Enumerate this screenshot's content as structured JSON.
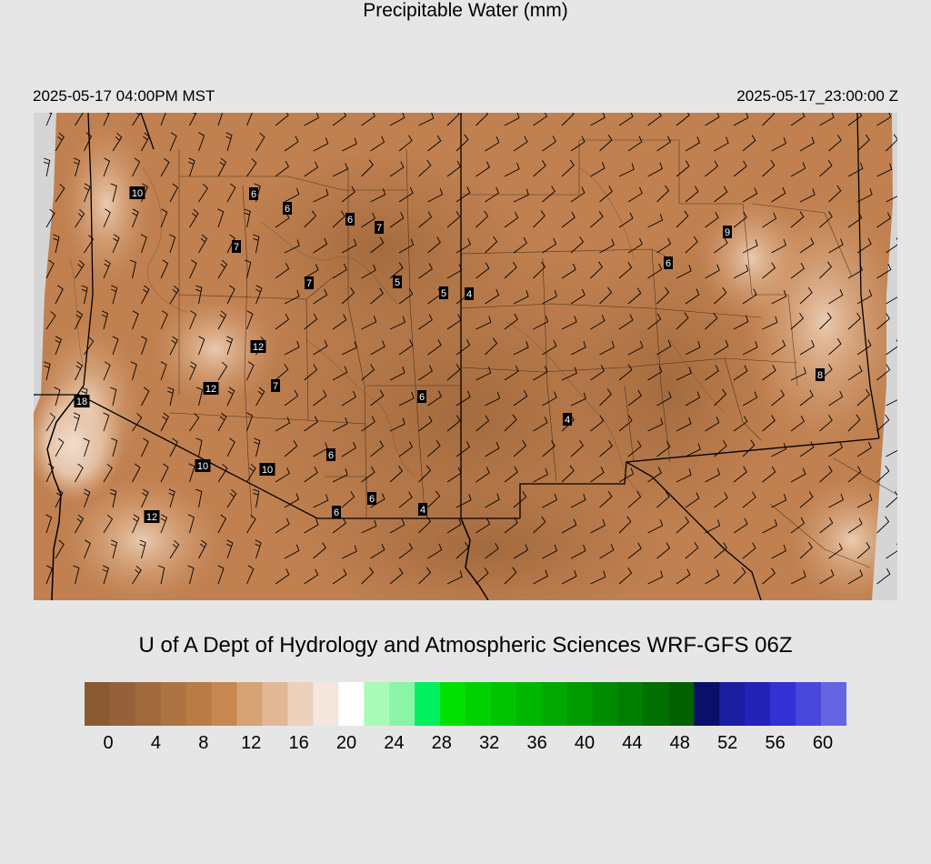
{
  "header": {
    "local_time": "2025-05-17 04:00PM MST",
    "title": "Precipitable Water (mm)",
    "valid_time": "2025-05-17_23:00:00 Z"
  },
  "footer": {
    "credit": "U of A Dept of Hydrology and Atmospheric Sciences WRF-GFS 06Z"
  },
  "colorbar": {
    "colors": [
      "#8a5a32",
      "#95613a",
      "#a16a3e",
      "#ad7342",
      "#b97c47",
      "#c7874f",
      "#d5a375",
      "#e0b896",
      "#ecd1bb",
      "#f4e6dd",
      "#ffffff",
      "#aafab7",
      "#8af5a7",
      "#00f060",
      "#00e000",
      "#00d200",
      "#00c400",
      "#00b600",
      "#00a800",
      "#009a00",
      "#008c00",
      "#007e00",
      "#007000",
      "#006000",
      "#0a106a",
      "#1a1ea0",
      "#2323b8",
      "#3131d4",
      "#4848dd",
      "#6565e2"
    ],
    "tick_labels": [
      "0",
      "4",
      "8",
      "12",
      "16",
      "20",
      "24",
      "28",
      "32",
      "36",
      "40",
      "44",
      "48",
      "52",
      "56",
      "60"
    ]
  },
  "stations": [
    {
      "value": "10"
    },
    {
      "value": "6"
    },
    {
      "value": "6"
    },
    {
      "value": "6"
    },
    {
      "value": "7"
    },
    {
      "value": "7"
    },
    {
      "value": "7"
    },
    {
      "value": "5"
    },
    {
      "value": "5"
    },
    {
      "value": "4"
    },
    {
      "value": "9"
    },
    {
      "value": "6"
    },
    {
      "value": "12"
    },
    {
      "value": "12"
    },
    {
      "value": "7"
    },
    {
      "value": "18"
    },
    {
      "value": "6"
    },
    {
      "value": "8"
    },
    {
      "value": "4"
    },
    {
      "value": "6"
    },
    {
      "value": "10"
    },
    {
      "value": "10"
    },
    {
      "value": "6"
    },
    {
      "value": "4"
    },
    {
      "value": "6"
    },
    {
      "value": "12"
    }
  ]
}
